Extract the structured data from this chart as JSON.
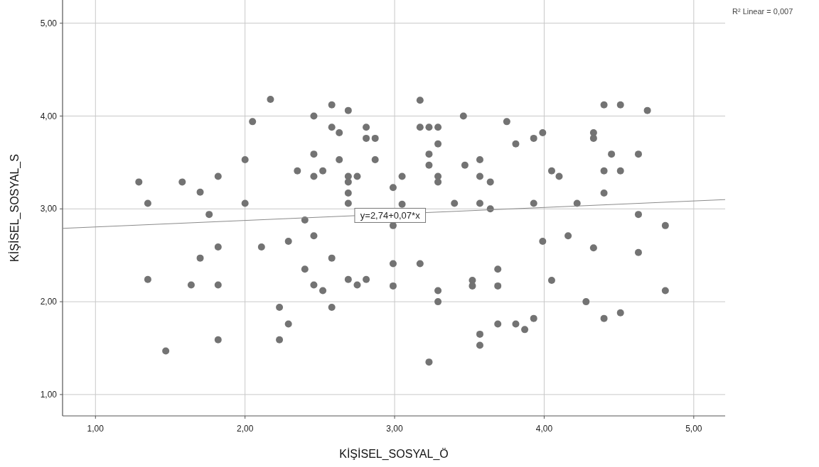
{
  "chart_data": {
    "type": "scatter",
    "xlabel": "KİŞİSEL_SOSYAL_Ö",
    "ylabel": "KİŞİSEL_SOSYAL_S",
    "xlim": [
      0.78,
      5.21
    ],
    "ylim": [
      0.77,
      5.25
    ],
    "xticks": [
      {
        "value": 1,
        "label": "1,00"
      },
      {
        "value": 2,
        "label": "2,00"
      },
      {
        "value": 3,
        "label": "3,00"
      },
      {
        "value": 4,
        "label": "4,00"
      },
      {
        "value": 5,
        "label": "5,00"
      }
    ],
    "yticks": [
      {
        "value": 1,
        "label": "1,00"
      },
      {
        "value": 2,
        "label": "2,00"
      },
      {
        "value": 3,
        "label": "3,00"
      },
      {
        "value": 4,
        "label": "4,00"
      },
      {
        "value": 5,
        "label": "5,00"
      }
    ],
    "grid": true,
    "annotations": [
      "R² Linear = 0,007",
      {
        "text": "y=2,74+0,07*x",
        "x": 2.97,
        "y": 2.93
      }
    ],
    "series": [
      {
        "marker": "circle",
        "color": "#737373",
        "x": [
          1.29,
          1.35,
          1.35,
          1.47,
          1.58,
          1.7,
          1.7,
          1.76,
          1.64,
          1.82,
          1.82,
          1.82,
          1.82,
          2.0,
          2.0,
          2.05,
          2.17,
          2.11,
          2.23,
          2.23,
          2.29,
          2.29,
          2.35,
          2.4,
          2.4,
          2.46,
          2.46,
          2.46,
          2.46,
          2.46,
          2.52,
          2.52,
          2.58,
          2.58,
          2.58,
          2.58,
          2.63,
          2.63,
          2.69,
          2.69,
          2.69,
          2.69,
          2.69,
          2.69,
          2.75,
          2.75,
          2.81,
          2.81,
          2.81,
          2.87,
          2.87,
          2.99,
          2.99,
          2.99,
          2.99,
          3.05,
          3.05,
          3.17,
          3.17,
          3.17,
          3.23,
          3.23,
          3.23,
          3.23,
          3.29,
          3.29,
          3.29,
          3.29,
          3.29,
          3.29,
          3.4,
          3.46,
          3.47,
          3.52,
          3.52,
          3.57,
          3.57,
          3.57,
          3.57,
          3.57,
          3.64,
          3.64,
          3.69,
          3.69,
          3.69,
          3.75,
          3.81,
          3.81,
          3.87,
          3.93,
          3.93,
          3.93,
          3.99,
          3.99,
          4.05,
          4.05,
          4.1,
          4.16,
          4.22,
          4.28,
          4.33,
          4.33,
          4.33,
          4.4,
          4.4,
          4.4,
          4.4,
          4.45,
          4.51,
          4.51,
          4.51,
          4.63,
          4.63,
          4.63,
          4.69,
          4.81,
          4.81
        ],
        "values": [
          3.29,
          3.06,
          2.24,
          1.47,
          3.29,
          3.18,
          2.47,
          2.94,
          2.18,
          3.35,
          2.59,
          2.18,
          1.59,
          3.53,
          3.06,
          3.94,
          4.18,
          2.59,
          1.94,
          1.59,
          1.76,
          2.65,
          3.41,
          2.88,
          2.35,
          4.0,
          3.59,
          3.35,
          2.71,
          2.18,
          3.41,
          2.12,
          4.12,
          3.88,
          2.47,
          1.94,
          3.82,
          3.53,
          4.06,
          3.35,
          3.29,
          3.17,
          3.06,
          2.24,
          3.35,
          2.18,
          3.88,
          3.76,
          2.24,
          3.76,
          3.53,
          3.23,
          2.82,
          2.41,
          2.17,
          3.35,
          3.05,
          4.17,
          3.88,
          2.41,
          3.88,
          3.59,
          3.47,
          1.35,
          3.35,
          2.12,
          2.0,
          3.88,
          3.7,
          3.29,
          3.06,
          4.0,
          3.47,
          2.23,
          2.17,
          3.53,
          3.35,
          3.06,
          1.65,
          1.53,
          3.29,
          3.0,
          2.35,
          2.17,
          1.76,
          3.94,
          3.7,
          1.76,
          1.7,
          3.76,
          3.06,
          1.82,
          3.82,
          2.65,
          3.41,
          2.23,
          3.35,
          2.71,
          3.06,
          2.0,
          3.82,
          3.76,
          2.58,
          4.12,
          3.41,
          3.17,
          1.82,
          3.59,
          4.12,
          3.41,
          1.88,
          3.59,
          2.94,
          2.53,
          4.06,
          2.82,
          2.12
        ]
      },
      {
        "type": "line",
        "color": "#8a8a8a",
        "x": [
          0.78,
          5.21
        ],
        "values": [
          2.79,
          3.1
        ]
      }
    ]
  }
}
